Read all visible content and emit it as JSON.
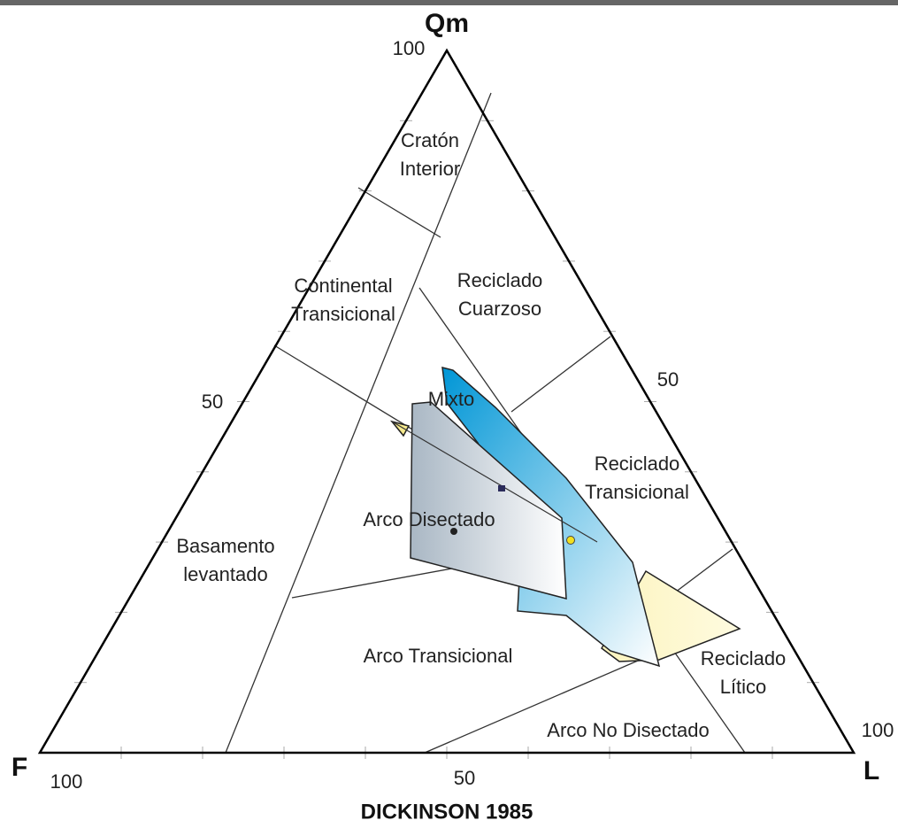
{
  "vertices": {
    "top": "Qm",
    "left": "F",
    "right": "L"
  },
  "scale_labels": {
    "top_100": "100",
    "left_50": "50",
    "right_50": "50",
    "right_100": "100",
    "bottom_100": "100",
    "bottom_50": "50"
  },
  "caption": "DICKINSON 1985",
  "regions": [
    {
      "lines": [
        "Cratón",
        "Interior"
      ]
    },
    {
      "lines": [
        "Continental",
        "Transicional"
      ]
    },
    {
      "lines": [
        "Reciclado",
        "Cuarzoso"
      ]
    },
    {
      "lines": [
        "Mixto"
      ]
    },
    {
      "lines": [
        "Reciclado",
        "Transicional"
      ]
    },
    {
      "lines": [
        "Arco Disectado"
      ]
    },
    {
      "lines": [
        "Basamento",
        "levantado"
      ]
    },
    {
      "lines": [
        "Arco Transicional"
      ]
    },
    {
      "lines": [
        "Reciclado",
        "Lítico"
      ]
    },
    {
      "lines": [
        "Arco No Disectado"
      ]
    }
  ]
}
